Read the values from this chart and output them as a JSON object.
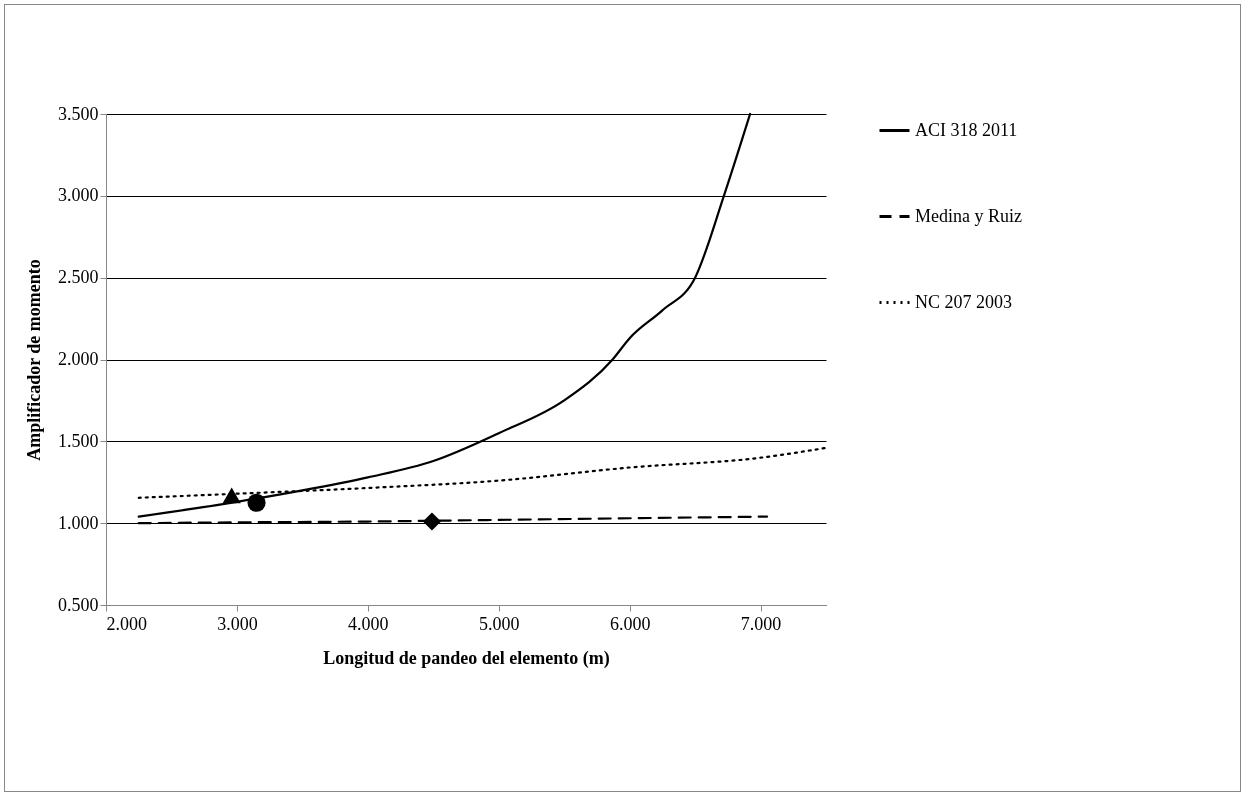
{
  "chart_data": {
    "type": "line",
    "xlabel": "Longitud de pandeo del elemento (m)",
    "ylabel": "Amplificador de momento",
    "xlim": [
      2.0,
      7.5
    ],
    "xticks": [
      {
        "value": 2,
        "label": "2.000"
      },
      {
        "value": 3,
        "label": "3.000"
      },
      {
        "value": 4,
        "label": "4.000"
      },
      {
        "value": 5,
        "label": "5.000"
      },
      {
        "value": 6,
        "label": "6.000"
      },
      {
        "value": 7,
        "label": "7.000"
      }
    ],
    "ylim": [
      0.5,
      3.5
    ],
    "yticks": [
      {
        "value": 0.5,
        "label": "0.500"
      },
      {
        "value": 1,
        "label": "1.000"
      },
      {
        "value": 1.5,
        "label": "1.500"
      },
      {
        "value": 2,
        "label": "2.000"
      },
      {
        "value": 2.5,
        "label": "2.500"
      },
      {
        "value": 3,
        "label": "3.000"
      },
      {
        "value": 3.5,
        "label": "3.500"
      }
    ],
    "grid": "y",
    "legend": "right",
    "series": [
      {
        "name": "ACI 318 2011",
        "color": "#000000",
        "line_style": "solid",
        "x": [
          2.25,
          3.0,
          3.5,
          4.0,
          4.5,
          5.0,
          5.5,
          5.87,
          6.0,
          6.25,
          6.5,
          6.72,
          6.92
        ],
        "values": [
          1.04,
          1.13,
          1.2,
          1.28,
          1.38,
          1.55,
          1.75,
          2.0,
          2.13,
          2.3,
          2.5,
          3.0,
          3.5
        ]
      },
      {
        "name": "Medina y Ruiz",
        "color": "#000000",
        "line_style": "dashed",
        "x": [
          2.25,
          3.0,
          4.0,
          5.0,
          6.0,
          7.05
        ],
        "values": [
          1.0,
          1.005,
          1.01,
          1.02,
          1.03,
          1.04
        ]
      },
      {
        "name": "NC 207 2003",
        "color": "#000000",
        "line_style": "dotted",
        "x": [
          2.25,
          3.0,
          4.0,
          5.0,
          6.0,
          7.0,
          7.5
        ],
        "values": [
          1.155,
          1.18,
          1.215,
          1.26,
          1.34,
          1.4,
          1.46
        ]
      },
      {
        "type": "scatter",
        "color": "#000000",
        "marker": "triangle",
        "x": [
          2.96
        ],
        "values": [
          1.17
        ]
      },
      {
        "type": "scatter",
        "color": "#000000",
        "marker": "circle",
        "x": [
          3.15
        ],
        "values": [
          1.125
        ]
      },
      {
        "type": "scatter",
        "color": "#000000",
        "marker": "diamond",
        "x": [
          4.49
        ],
        "values": [
          1.01
        ]
      }
    ]
  }
}
